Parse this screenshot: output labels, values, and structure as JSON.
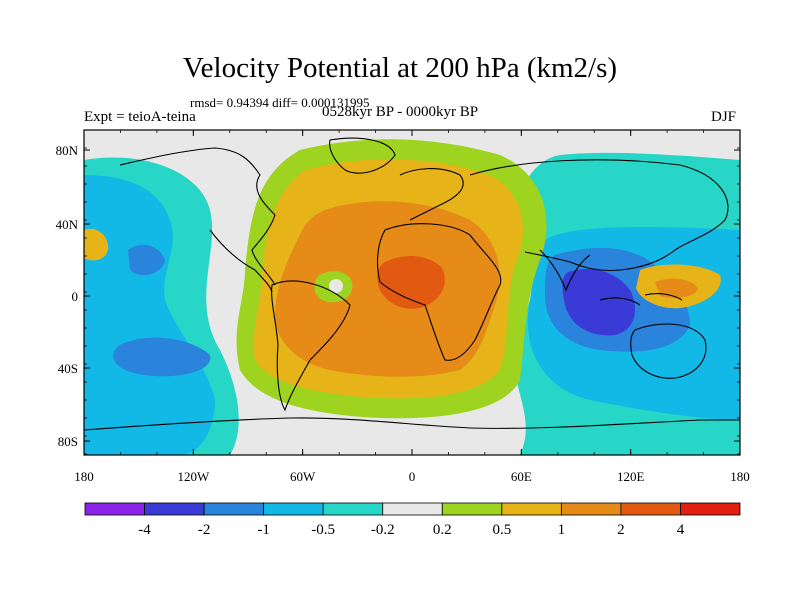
{
  "title": "Velocity Potential at 200 hPa (km2/s)",
  "stats_line": "rmsd= 0.94394 diff= 0.000131995",
  "left_label": "Expt = teioA-teina",
  "center_label": "0528kyr BP - 0000kyr BP",
  "right_label": "DJF",
  "lat_ticks": [
    "80N",
    "40N",
    "0",
    "40S",
    "80S"
  ],
  "lon_ticks": [
    "180",
    "120W",
    "60W",
    "0",
    "60E",
    "120E",
    "180"
  ],
  "colorbar": {
    "labels": [
      "-4",
      "-2",
      "-1",
      "-0.5",
      "-0.2",
      "0.2",
      "0.5",
      "1",
      "2",
      "4"
    ],
    "colors": [
      "#8a24e8",
      "#3a3ad6",
      "#2a84dc",
      "#12b8e6",
      "#27d6c6",
      "#e8e8e8",
      "#9ed320",
      "#e6b418",
      "#e68a18",
      "#e25a12",
      "#e01e12"
    ]
  },
  "field_colors": {
    "strong_negative": "#3a3ad6",
    "negative": "#2a84dc",
    "weak_negative": "#12b8e6",
    "near_zero_negative": "#27d6c6",
    "neutral": "#e8e8e8",
    "near_zero_positive": "#9ed320",
    "weak_positive": "#e6b418",
    "positive": "#e68a18",
    "strong_positive": "#e25a12"
  }
}
